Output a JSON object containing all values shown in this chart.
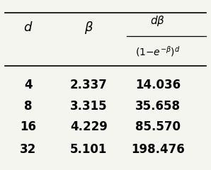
{
  "col1_header": "d",
  "col2_header": "β",
  "col3_header_line1": "dβ",
  "col3_header_line2": "(1−e⁻β)d",
  "rows": [
    [
      "4",
      "2.337",
      "14.036"
    ],
    [
      "8",
      "3.315",
      "35.658"
    ],
    [
      "16",
      "4.229",
      "85.570"
    ],
    [
      "32",
      "5.101",
      "198.476"
    ]
  ],
  "bg_color": "#f5f5f0",
  "line_color": "black",
  "text_color": "black",
  "font_size": 11,
  "header_font_size": 11
}
